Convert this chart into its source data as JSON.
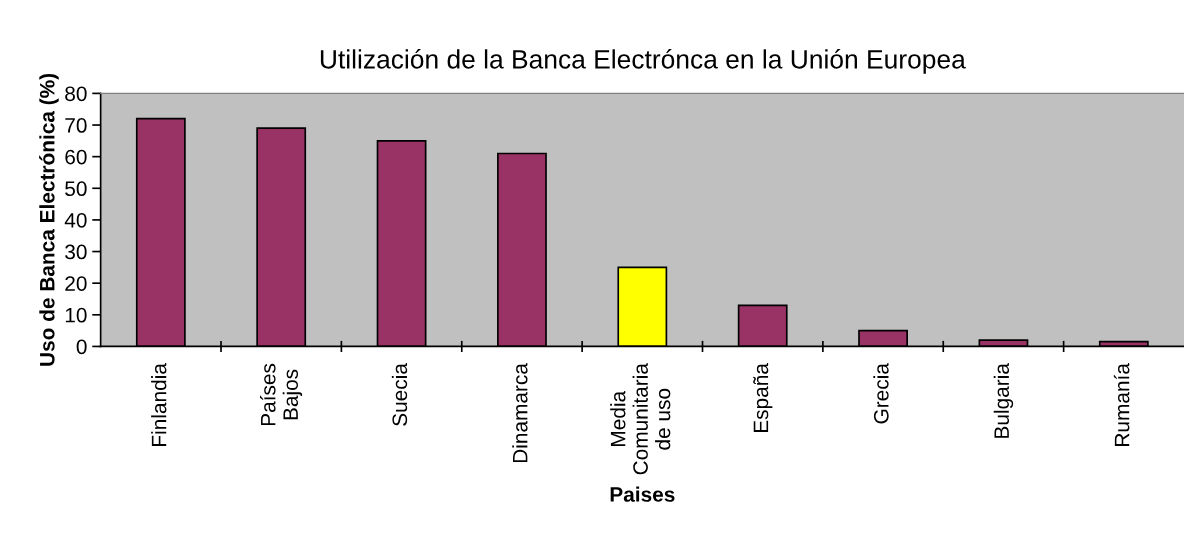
{
  "chart_data": {
    "type": "bar",
    "title": "Utilización de la Banca Electrónca en la Unión Europea",
    "xlabel": "Paises",
    "ylabel": "Uso de Banca Electrónica (%)",
    "categories": [
      "Finlandia",
      "Países\nBajos",
      "Suecia",
      "Dinamarca",
      "Media\nComunitaria\nde uso",
      "España",
      "Grecia",
      "Bulgaria",
      "Rumanía"
    ],
    "values": [
      72,
      69,
      65,
      61,
      25,
      13,
      5,
      2,
      1.5
    ],
    "colors": [
      "#993366",
      "#993366",
      "#993366",
      "#993366",
      "#ffff00",
      "#993366",
      "#993366",
      "#993366",
      "#993366"
    ],
    "ylim": [
      0,
      80
    ],
    "yticks": [
      0,
      10,
      20,
      30,
      40,
      50,
      60,
      70,
      80
    ],
    "grid": false,
    "legend": false
  }
}
